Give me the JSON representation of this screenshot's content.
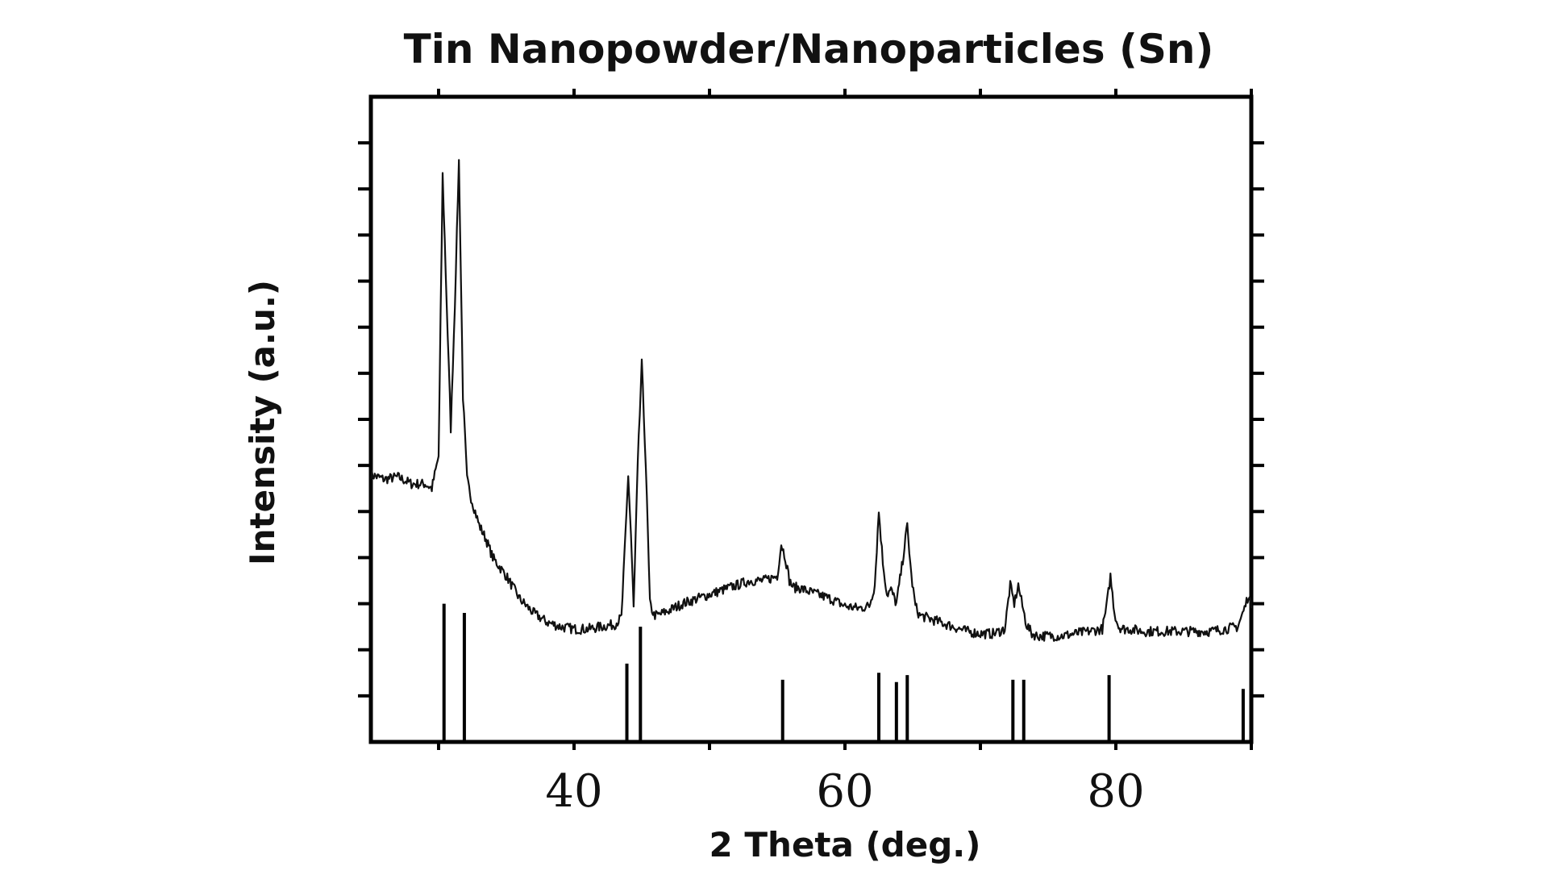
{
  "chart_data": {
    "type": "line",
    "title": "Tin Nanopowder/Nanoparticles (Sn)",
    "xlabel": "2 Theta (deg.)",
    "ylabel": "Intensity (a.u.)",
    "xlim": [
      25,
      90
    ],
    "ylim": [
      0,
      14
    ],
    "x_tick_labels": [
      {
        "value": 40,
        "label": "40"
      },
      {
        "value": 60,
        "label": "60"
      },
      {
        "value": 80,
        "label": "80"
      }
    ],
    "x_minor_ticks": [
      30,
      50,
      70,
      90
    ],
    "y_ticks": [
      1,
      2,
      3,
      4,
      5,
      6,
      7,
      8,
      9,
      10,
      11,
      12,
      13
    ],
    "grid": false,
    "legend": "none",
    "series": [
      {
        "type": "line",
        "x": [
          25,
          26,
          27,
          28,
          29,
          29.5,
          30,
          30.3,
          30.6,
          30.9,
          31.2,
          31.5,
          31.8,
          32.1,
          32.4,
          32.7,
          33,
          33.5,
          34,
          35,
          36,
          37,
          38,
          39,
          40,
          41,
          42,
          43,
          43.5,
          43.8,
          44,
          44.2,
          44.4,
          44.7,
          45,
          45.3,
          45.6,
          45.9,
          46.2,
          47,
          48,
          50,
          52,
          53,
          54,
          55,
          55.3,
          55.6,
          55.9,
          56.2,
          56.6,
          57,
          58,
          59,
          60,
          61,
          61.8,
          62.2,
          62.5,
          62.8,
          63.1,
          63.4,
          63.8,
          64.2,
          64.6,
          64.9,
          65.2,
          65.5,
          66,
          67,
          68,
          69,
          70,
          71,
          71.8,
          72.2,
          72.5,
          72.8,
          73.1,
          73.4,
          73.8,
          74.2,
          75,
          76,
          77,
          78,
          79,
          79.3,
          79.6,
          79.9,
          80.2,
          80.6,
          81,
          82,
          83,
          84,
          85,
          86,
          87,
          88,
          89,
          89.5,
          89.8,
          90
        ],
        "y": [
          5.8,
          5.7,
          5.75,
          5.6,
          5.6,
          5.5,
          6.2,
          12.3,
          9.5,
          6.8,
          9.5,
          12.6,
          7.5,
          5.7,
          5.3,
          5.0,
          4.7,
          4.4,
          4.0,
          3.6,
          3.1,
          2.8,
          2.6,
          2.5,
          2.45,
          2.45,
          2.5,
          2.55,
          2.7,
          4.5,
          5.8,
          4.5,
          2.9,
          6.0,
          8.2,
          6.0,
          3.0,
          2.75,
          2.75,
          2.85,
          3.0,
          3.2,
          3.4,
          3.5,
          3.5,
          3.6,
          4.3,
          4.0,
          3.5,
          3.35,
          3.35,
          3.3,
          3.2,
          3.1,
          2.95,
          2.9,
          2.95,
          3.4,
          5.0,
          3.9,
          3.2,
          3.3,
          3.0,
          3.8,
          4.7,
          3.6,
          2.95,
          2.75,
          2.7,
          2.6,
          2.5,
          2.4,
          2.35,
          2.35,
          2.45,
          3.4,
          3.0,
          3.4,
          2.95,
          2.55,
          2.35,
          2.3,
          2.3,
          2.3,
          2.35,
          2.4,
          2.45,
          2.9,
          3.6,
          2.8,
          2.5,
          2.45,
          2.45,
          2.4,
          2.4,
          2.4,
          2.4,
          2.4,
          2.4,
          2.45,
          2.5,
          2.9,
          3.2,
          2.9
        ]
      },
      {
        "type": "stick",
        "x": [
          30.4,
          31.9,
          43.9,
          44.9,
          55.4,
          62.5,
          63.8,
          64.6,
          72.4,
          73.2,
          79.5,
          89.4
        ],
        "y": [
          3.0,
          2.8,
          1.7,
          2.5,
          1.35,
          1.5,
          1.3,
          1.45,
          1.35,
          1.35,
          1.45,
          1.15
        ]
      }
    ]
  }
}
